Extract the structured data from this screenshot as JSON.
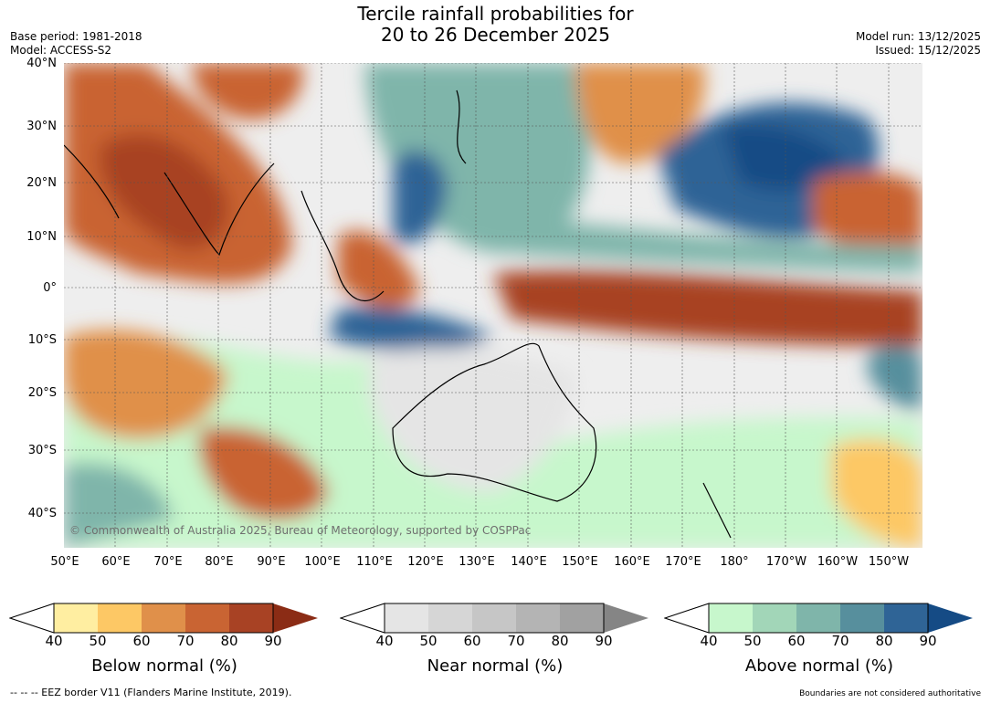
{
  "title": {
    "line1": "Tercile rainfall probabilities for",
    "line2": "20 to 26 December 2025"
  },
  "meta": {
    "base_period": "Base period: 1981-2018",
    "model": "Model: ACCESS-S2",
    "model_run": "Model run: 13/12/2025",
    "issued": "Issued: 15/12/2025"
  },
  "axes": {
    "lat_labels": [
      "40°N",
      "30°N",
      "20°N",
      "10°N",
      "0°",
      "10°S",
      "20°S",
      "30°S",
      "40°S"
    ],
    "lon_labels": [
      "50°E",
      "60°E",
      "70°E",
      "80°E",
      "90°E",
      "100°E",
      "110°E",
      "120°E",
      "130°E",
      "140°E",
      "150°E",
      "160°E",
      "170°E",
      "180°",
      "170°W",
      "160°W",
      "150°W"
    ]
  },
  "copyright": "© Commonwealth of Australia 2025, Bureau of Meteorology, supported by COSPPac",
  "colorbars": [
    {
      "label": "Below normal (%)",
      "ticks": [
        "40",
        "50",
        "60",
        "70",
        "80",
        "90"
      ],
      "colors": [
        "#ffeea1",
        "#fdc865",
        "#e0904a",
        "#c96433",
        "#a84224"
      ],
      "extend_color": "#8b2c15"
    },
    {
      "label": "Near normal (%)",
      "ticks": [
        "40",
        "50",
        "60",
        "70",
        "80",
        "90"
      ],
      "colors": [
        "#e5e5e5",
        "#d6d6d6",
        "#c6c6c6",
        "#b4b4b4",
        "#a1a1a1"
      ],
      "extend_color": "#858585"
    },
    {
      "label": "Above normal (%)",
      "ticks": [
        "40",
        "50",
        "60",
        "70",
        "80",
        "90"
      ],
      "colors": [
        "#c7f7cc",
        "#a2d6b8",
        "#7fb5aa",
        "#578f9d",
        "#2f6496"
      ],
      "extend_color": "#154b85"
    }
  ],
  "footer": {
    "eez": "--  --  -- EEZ border V11 (Flanders Marine Institute, 2019).",
    "disclaimer": "Boundaries are not considered authoritative"
  }
}
